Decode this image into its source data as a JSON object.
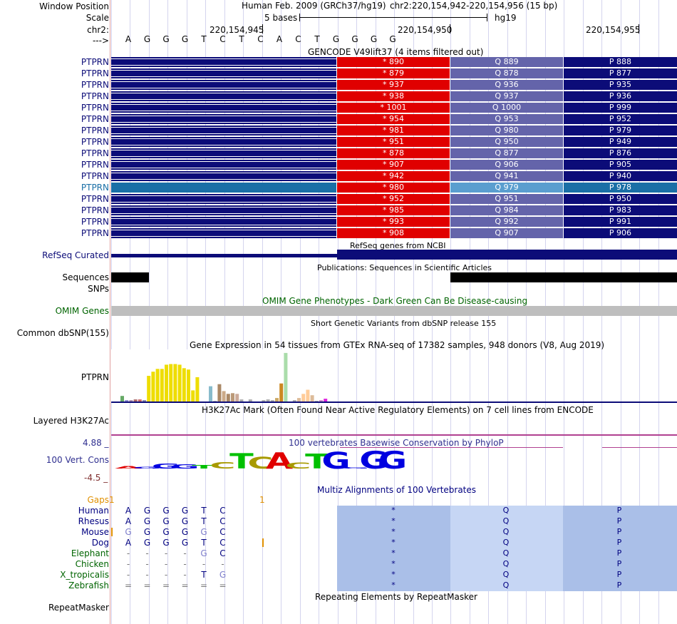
{
  "header": {
    "window_position_label": "Window Position",
    "scale_label": "Scale",
    "chr_label": "chr2:",
    "arrow_label": "--->",
    "assembly": "Human Feb. 2009 (GRCh37/hg19)",
    "position": "chr2:220,154,942-220,154,956 (15 bp)",
    "scale_text": "5 bases",
    "db": "hg19",
    "coords": [
      "220,154,945",
      "220,154,950",
      "220,154,955"
    ],
    "bases": [
      "A",
      "G",
      "G",
      "G",
      "T",
      "C",
      "T",
      "C",
      "A",
      "C",
      "T",
      "G",
      "G",
      "G",
      "G"
    ]
  },
  "gencode": {
    "title": "GENCODE V49lift37 (4 items filtered out)",
    "rows": [
      {
        "name": "PTPRN",
        "stop": "* 890",
        "q": "Q 889",
        "p": "P 888"
      },
      {
        "name": "PTPRN",
        "stop": "* 879",
        "q": "Q 878",
        "p": "P 877"
      },
      {
        "name": "PTPRN",
        "stop": "* 937",
        "q": "Q 936",
        "p": "P 935"
      },
      {
        "name": "PTPRN",
        "stop": "* 938",
        "q": "Q 937",
        "p": "P 936"
      },
      {
        "name": "PTPRN",
        "stop": "* 1001",
        "q": "Q 1000",
        "p": "P 999"
      },
      {
        "name": "PTPRN",
        "stop": "* 954",
        "q": "Q 953",
        "p": "P 952"
      },
      {
        "name": "PTPRN",
        "stop": "* 981",
        "q": "Q 980",
        "p": "P 979"
      },
      {
        "name": "PTPRN",
        "stop": "* 951",
        "q": "Q 950",
        "p": "P 949"
      },
      {
        "name": "PTPRN",
        "stop": "* 878",
        "q": "Q 877",
        "p": "P 876"
      },
      {
        "name": "PTPRN",
        "stop": "* 907",
        "q": "Q 906",
        "p": "P 905"
      },
      {
        "name": "PTPRN",
        "stop": "* 942",
        "q": "Q 941",
        "p": "P 940"
      },
      {
        "name": "PTPRN",
        "stop": "* 980",
        "q": "Q 979",
        "p": "P 978",
        "highlight": true
      },
      {
        "name": "PTPRN",
        "stop": "* 952",
        "q": "Q 951",
        "p": "P 950"
      },
      {
        "name": "PTPRN",
        "stop": "* 985",
        "q": "Q 984",
        "p": "P 983"
      },
      {
        "name": "PTPRN",
        "stop": "* 993",
        "q": "Q 992",
        "p": "P 991"
      },
      {
        "name": "PTPRN",
        "stop": "* 908",
        "q": "Q 907",
        "p": "P 906"
      }
    ]
  },
  "tracks": {
    "refseq_label": "RefSeq Curated",
    "refseq_title": "RefSeq genes from NCBI",
    "sequences_label": "Sequences",
    "publications_title": "Publications: Sequences in Scientific Articles",
    "snps_label": "SNPs",
    "omim_title": "OMIM Gene Phenotypes - Dark Green Can Be Disease-causing",
    "omim_label": "OMIM Genes",
    "dbsnp_title": "Short Genetic Variants from dbSNP release 155",
    "dbsnp_label": "Common dbSNP(155)",
    "gtex_title": "Gene Expression in 54 tissues from GTEx RNA-seq of 17382 samples, 948 donors (V8, Aug 2019)",
    "gtex_label": "PTPRN",
    "h3k27_title": "H3K27Ac Mark (Often Found Near Active Regulatory Elements) on 7 cell lines from ENCODE",
    "h3k27_label": "Layered H3K27Ac",
    "phylop_title": "100 vertebrates Basewise Conservation by PhyloP",
    "phylop_label": "100 Vert. Cons",
    "phylop_max": "4.88 _",
    "phylop_min": "-4.5 _",
    "multiz_title": "Multiz Alignments of 100 Vertebrates",
    "gaps_label": "Gaps",
    "gaps_marks": [
      "1",
      "1"
    ],
    "repeat_title": "Repeating Elements by RepeatMasker",
    "repeat_label": "RepeatMasker"
  },
  "colors": {
    "navy": "#0c0c78",
    "red": "#e00000",
    "q_purple": "#6464aa",
    "highlight": "#1a6fa6",
    "omim_gray": "#bebebe"
  },
  "gtex_bars": [
    {
      "v": 8,
      "c": "#66aa66"
    },
    {
      "v": 2,
      "c": "#8888cc"
    },
    {
      "v": 2,
      "c": "#aa88aa"
    },
    {
      "v": 3,
      "c": "#aa6666"
    },
    {
      "v": 3,
      "c": "#cc6666"
    },
    {
      "v": 2,
      "c": "#8888aa"
    },
    {
      "v": 37,
      "c": "#eedd00"
    },
    {
      "v": 43,
      "c": "#eedd00"
    },
    {
      "v": 47,
      "c": "#eedd00"
    },
    {
      "v": 47,
      "c": "#eedd00"
    },
    {
      "v": 53,
      "c": "#eedd00"
    },
    {
      "v": 54,
      "c": "#eedd00"
    },
    {
      "v": 54,
      "c": "#eedd00"
    },
    {
      "v": 53,
      "c": "#eedd00"
    },
    {
      "v": 48,
      "c": "#eedd00"
    },
    {
      "v": 46,
      "c": "#eedd00"
    },
    {
      "v": 16,
      "c": "#eedd00"
    },
    {
      "v": 35,
      "c": "#eedd00"
    },
    {
      "v": 0,
      "c": "#ffffff"
    },
    {
      "v": 0,
      "c": "#ffffff"
    },
    {
      "v": 22,
      "c": "#88bbcc"
    },
    {
      "v": 1,
      "c": "#aaaaaa"
    },
    {
      "v": 25,
      "c": "#aa8866"
    },
    {
      "v": 15,
      "c": "#ccaa88"
    },
    {
      "v": 11,
      "c": "#aa8866"
    },
    {
      "v": 12,
      "c": "#bb9977"
    },
    {
      "v": 11,
      "c": "#ccaa99"
    },
    {
      "v": 3,
      "c": "#aaaaaa"
    },
    {
      "v": 0,
      "c": "#ffffff"
    },
    {
      "v": 3,
      "c": "#aaaaaa"
    },
    {
      "v": 0,
      "c": "#ffffff"
    },
    {
      "v": 0,
      "c": "#ffffff"
    },
    {
      "v": 2,
      "c": "#aaaaaa"
    },
    {
      "v": 3,
      "c": "#aaaaaa"
    },
    {
      "v": 2,
      "c": "#aaaaaa"
    },
    {
      "v": 5,
      "c": "#ccaa66"
    },
    {
      "v": 26,
      "c": "#cc8822"
    },
    {
      "v": 70,
      "c": "#aaddaa"
    },
    {
      "v": 0,
      "c": "#ffffff"
    },
    {
      "v": 2,
      "c": "#aaaaaa"
    },
    {
      "v": 5,
      "c": "#ddbb99"
    },
    {
      "v": 11,
      "c": "#ffcc99"
    },
    {
      "v": 17,
      "c": "#ffcc99"
    },
    {
      "v": 9,
      "c": "#ddbb99"
    },
    {
      "v": 1,
      "c": "#aaaaaa"
    },
    {
      "v": 2,
      "c": "#cc88cc"
    },
    {
      "v": 4,
      "c": "#dd22dd"
    }
  ],
  "phylop_bases": [
    {
      "b": "A",
      "s": 0.6
    },
    {
      "b": "G",
      "s": 0.5
    },
    {
      "b": "G",
      "s": 1.2
    },
    {
      "b": "G",
      "s": 1.0
    },
    {
      "b": "T",
      "s": 0.9
    },
    {
      "b": "C",
      "s": 1.6
    },
    {
      "b": "T",
      "s": 3.8
    },
    {
      "b": "C",
      "s": 2.9
    },
    {
      "b": "A",
      "s": 4.0
    },
    {
      "b": "C",
      "s": 1.5
    },
    {
      "b": "T",
      "s": 3.7
    },
    {
      "b": "G",
      "s": 4.2
    },
    {
      "b": "G",
      "s": 0.3
    },
    {
      "b": "G",
      "s": 4.4
    },
    {
      "b": "G",
      "s": 4.4
    }
  ],
  "alignment": {
    "species": [
      {
        "name": "Human",
        "color": "#000080",
        "bases": [
          "A",
          "G",
          "G",
          "G",
          "T",
          "C"
        ]
      },
      {
        "name": "Rhesus",
        "color": "#000080",
        "bases": [
          "A",
          "G",
          "G",
          "G",
          "T",
          "C"
        ]
      },
      {
        "name": "Mouse",
        "color": "#000080",
        "bases": [
          "G",
          "G",
          "G",
          "G",
          "G",
          "C"
        ]
      },
      {
        "name": "Dog",
        "color": "#000080",
        "bases": [
          "A",
          "G",
          "G",
          "G",
          "T",
          "C"
        ]
      },
      {
        "name": "Elephant",
        "color": "#006400",
        "bases": [
          "-",
          "-",
          "-",
          "-",
          "G",
          "C"
        ]
      },
      {
        "name": "Chicken",
        "color": "#006400",
        "bases": [
          "-",
          "-",
          "-",
          "-",
          "-",
          "-"
        ]
      },
      {
        "name": "X_tropicalis",
        "color": "#006400",
        "bases": [
          "-",
          "-",
          "-",
          "-",
          "T",
          "G"
        ]
      },
      {
        "name": "Zebrafish",
        "color": "#006400",
        "bases": [
          "=",
          "=",
          "=",
          "=",
          "=",
          "="
        ]
      }
    ],
    "aa": [
      "*",
      "Q",
      "P"
    ]
  }
}
